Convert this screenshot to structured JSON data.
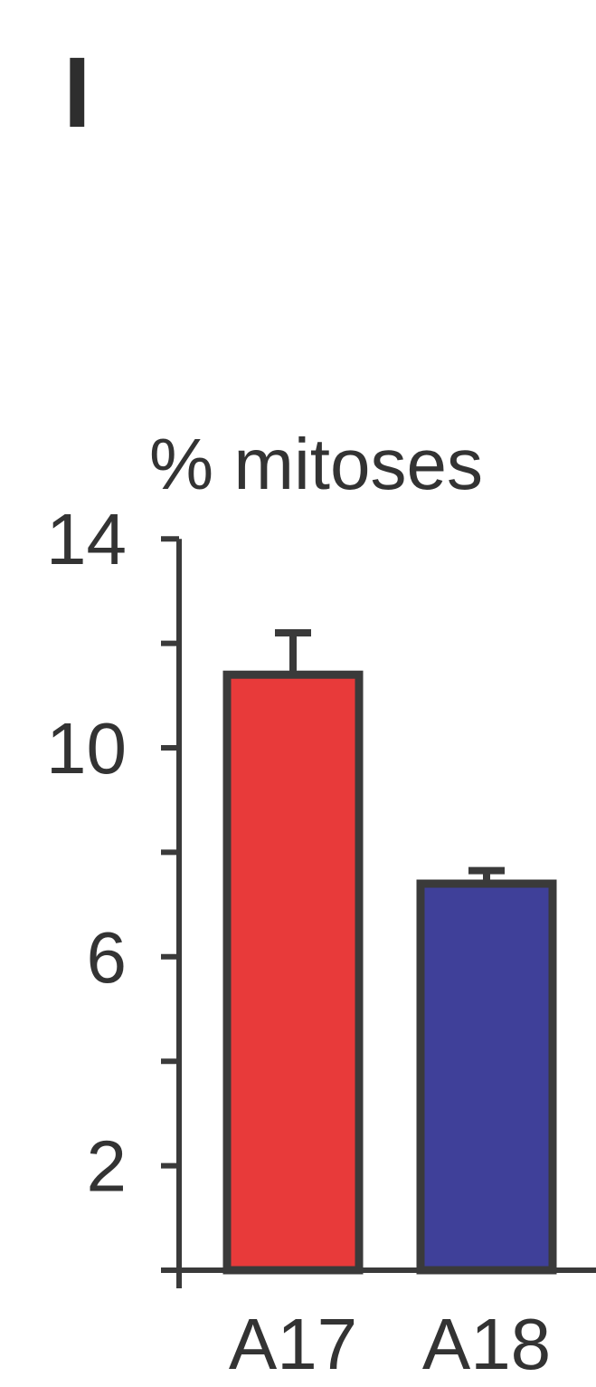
{
  "panel_label": "I",
  "chart_data": {
    "type": "bar",
    "title": "",
    "ylabel": "% mitoses",
    "xlabel": "",
    "ylim": [
      0,
      14
    ],
    "yticks_labeled": [
      2,
      6,
      10,
      14
    ],
    "yticks_minor": [
      4,
      8,
      12
    ],
    "ytick_labels": [
      "2",
      "6",
      "10",
      "14"
    ],
    "grid": false,
    "categories": [
      "A17",
      "A18"
    ],
    "values": [
      11.4,
      7.4
    ],
    "errors": [
      0.8,
      0.25
    ],
    "colors": [
      "#e83a3a",
      "#3f4099"
    ],
    "edge_color": "#3a3a3a"
  }
}
